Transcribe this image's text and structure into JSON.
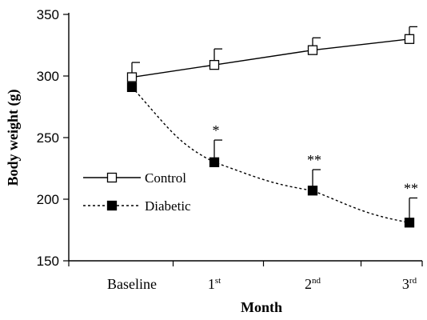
{
  "chart_data": {
    "type": "line",
    "title": "",
    "xlabel": "Month",
    "ylabel": "Body weight (g)",
    "ylim": [
      150,
      350
    ],
    "yticks": [
      150,
      200,
      250,
      300,
      350
    ],
    "categories": [
      {
        "base": "Baseline",
        "sup": ""
      },
      {
        "base": "1",
        "sup": "st"
      },
      {
        "base": "2",
        "sup": "nd"
      },
      {
        "base": "3",
        "sup": "rd"
      }
    ],
    "series": [
      {
        "name": "Control",
        "values": [
          299,
          309,
          321,
          330
        ],
        "error_up": [
          12,
          13,
          10,
          10
        ],
        "marker": "open-square",
        "line": "solid",
        "color": "#000000"
      },
      {
        "name": "Diabetic",
        "values": [
          291,
          230,
          207,
          181
        ],
        "error_up": [
          0,
          18,
          17,
          20
        ],
        "marker": "filled-square",
        "line": "dotted",
        "color": "#000000"
      }
    ],
    "annotations": [
      {
        "series": "Diabetic",
        "category_index": 1,
        "text": "*"
      },
      {
        "series": "Diabetic",
        "category_index": 2,
        "text": "**"
      },
      {
        "series": "Diabetic",
        "category_index": 3,
        "text": "**"
      }
    ],
    "legend_position": "left-middle",
    "grid": false
  }
}
